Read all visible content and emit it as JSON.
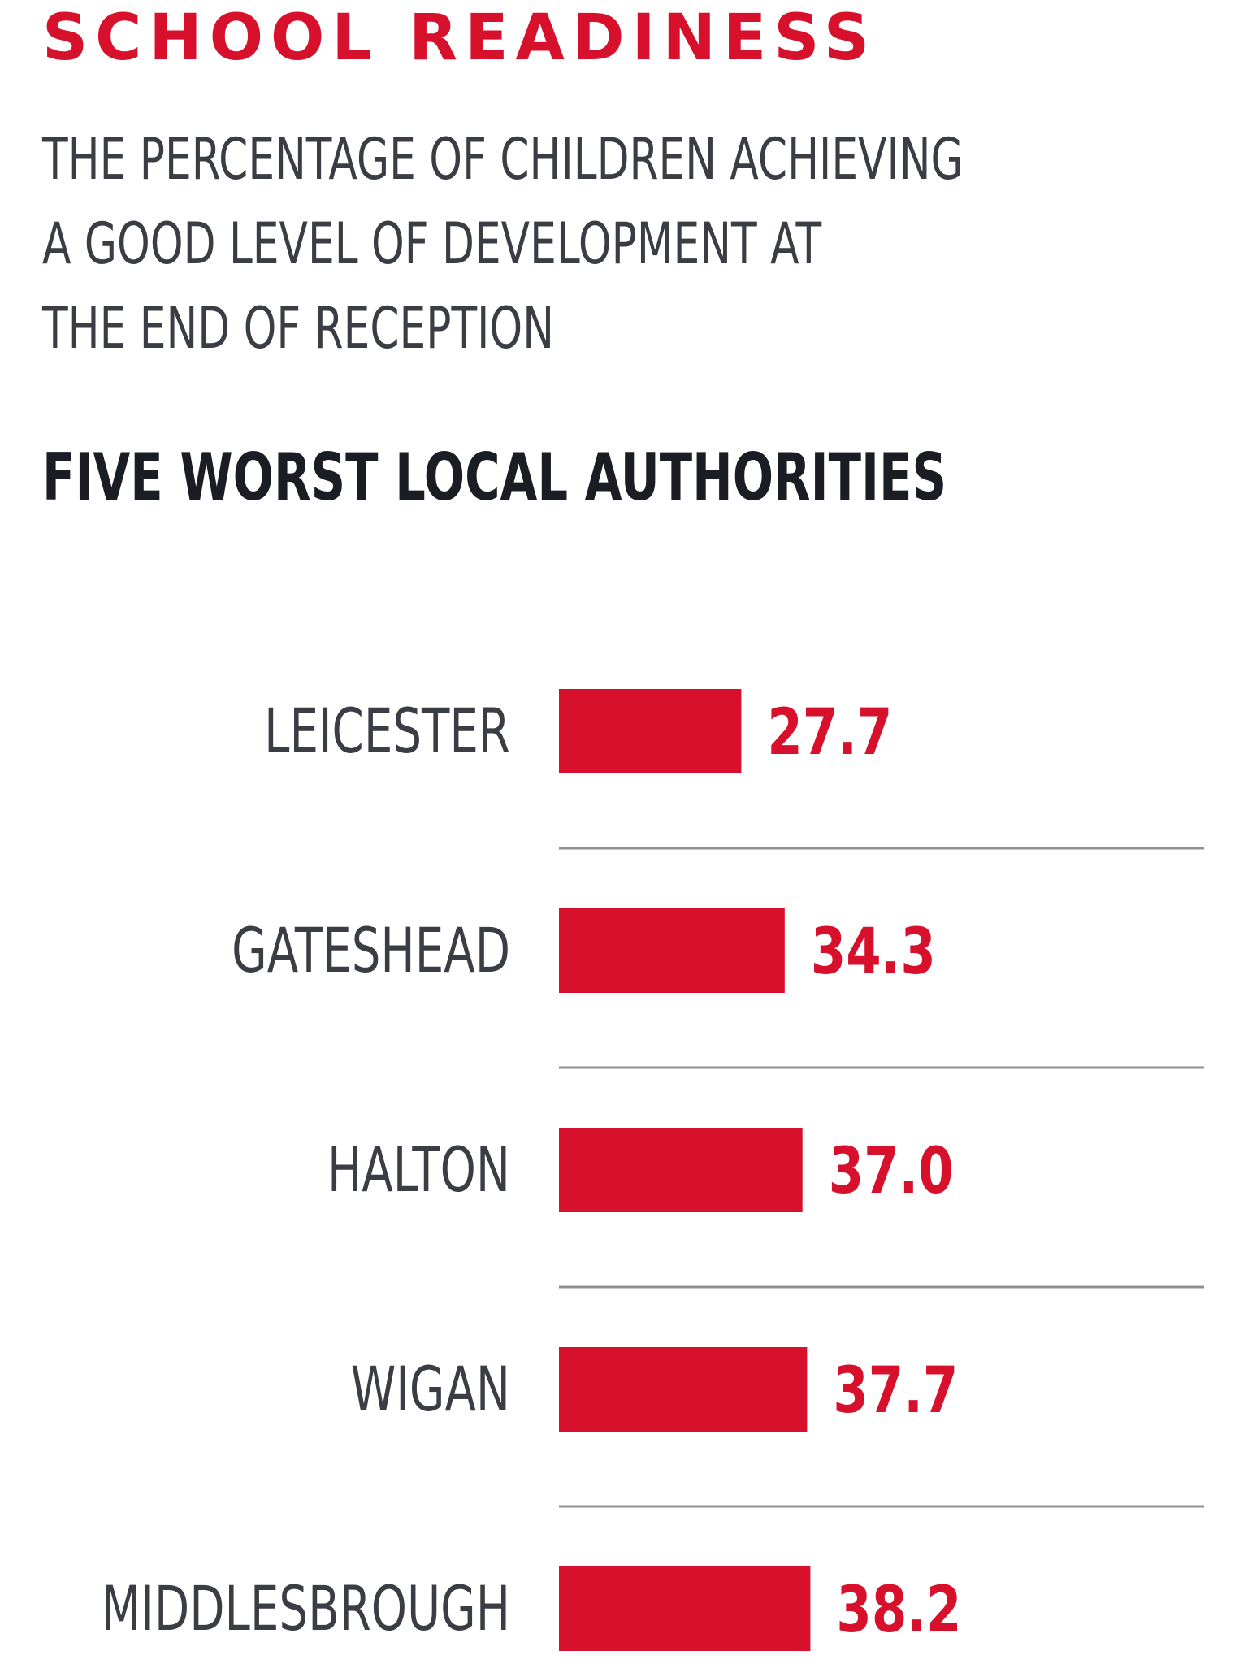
{
  "title": "SCHOOL READINESS",
  "subtitle_lines": [
    "THE PERCENTAGE OF CHILDREN ACHIEVING",
    "A GOOD LEVEL OF DEVELOPMENT AT",
    "THE END OF RECEPTION"
  ],
  "section_heading": "FIVE WORST LOCAL AUTHORITIES",
  "colors": {
    "accent": "#d7102c",
    "label_text": "#3a3d44",
    "divider": "#8e9094"
  },
  "chart_data": {
    "type": "bar",
    "orientation": "horizontal",
    "title": "SCHOOL READINESS",
    "subtitle": "THE PERCENTAGE OF CHILDREN ACHIEVING A GOOD LEVEL OF DEVELOPMENT AT THE END OF RECEPTION",
    "heading": "FIVE WORST LOCAL AUTHORITIES",
    "categories": [
      "LEICESTER",
      "GATESHEAD",
      "HALTON",
      "WIGAN",
      "MIDDLESBROUGH"
    ],
    "values": [
      27.7,
      34.3,
      37.0,
      37.7,
      38.2
    ],
    "value_labels": [
      "27.7",
      "34.3",
      "37.0",
      "37.7",
      "38.2"
    ],
    "xlabel": "",
    "ylabel": "",
    "grid": false,
    "legend": "none"
  }
}
